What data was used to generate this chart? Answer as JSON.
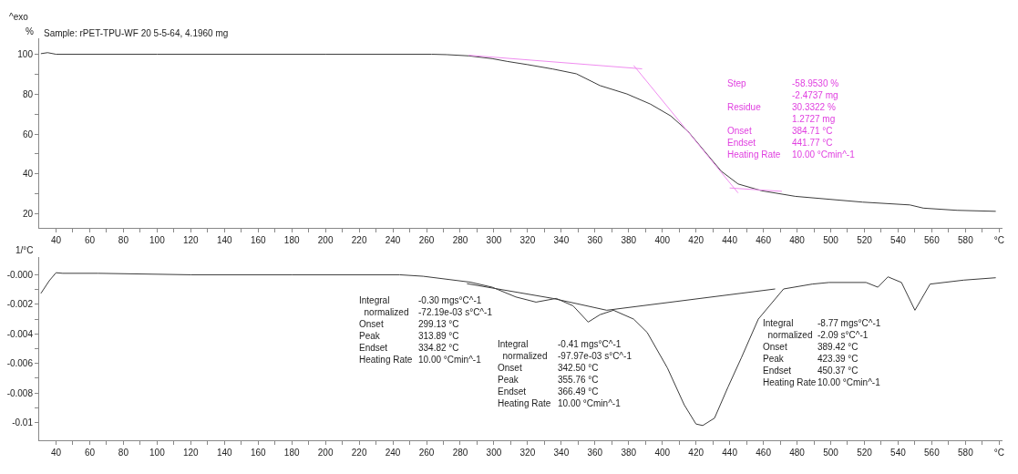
{
  "chart_data": [
    {
      "type": "line",
      "title": "Sample: rPET-TPU-WF 20 5-5-64, 4.1960 mg",
      "ylabel": "%",
      "annotations": [
        "^exo",
        "Step\n\nResidue\n\nOnset\nEndset\nHeating Rate",
        "-58.9530 %\n-2.4737 mg\n30.3322 %\n1.2727 mg\n384.71 °C\n441.77 °C\n10.00 °Cmin^-1"
      ],
      "xlim": [
        30,
        602
      ],
      "xticks": [
        40,
        {
          "value": 50,
          "label": null
        },
        60,
        {
          "value": 70,
          "label": null
        },
        80,
        {
          "value": 90,
          "label": null
        },
        100,
        {
          "value": 110,
          "label": null
        },
        120,
        {
          "value": 130,
          "label": null
        },
        140,
        {
          "value": 150,
          "label": null
        },
        160,
        {
          "value": 170,
          "label": null
        },
        180,
        {
          "value": 190,
          "label": null
        },
        200,
        {
          "value": 210,
          "label": null
        },
        220,
        {
          "value": 230,
          "label": null
        },
        240,
        {
          "value": 250,
          "label": null
        },
        260,
        {
          "value": 270,
          "label": null
        },
        280,
        {
          "value": 290,
          "label": null
        },
        300,
        {
          "value": 310,
          "label": null
        },
        320,
        {
          "value": 330,
          "label": null
        },
        340,
        {
          "value": 350,
          "label": null
        },
        360,
        {
          "value": 370,
          "label": null
        },
        380,
        {
          "value": 390,
          "label": null
        },
        400,
        {
          "value": 410,
          "label": null
        },
        420,
        {
          "value": 430,
          "label": null
        },
        440,
        {
          "value": 450,
          "label": null
        },
        460,
        {
          "value": 470,
          "label": null
        },
        480,
        {
          "value": 490,
          "label": null
        },
        500,
        {
          "value": 510,
          "label": null
        },
        520,
        {
          "value": 530,
          "label": null
        },
        540,
        {
          "value": 550,
          "label": null
        },
        560,
        {
          "value": 570,
          "label": null
        },
        580,
        {
          "value": 590,
          "label": null
        },
        {
          "value": 600,
          "label": "°C"
        }
      ],
      "ylim": [
        13,
        108
      ],
      "yticks": [
        20,
        {
          "value": 30,
          "label": null
        },
        40,
        {
          "value": 50,
          "label": null
        },
        60,
        {
          "value": 70,
          "label": null
        },
        80,
        {
          "value": 90,
          "label": null
        },
        100
      ],
      "grid": false,
      "series": [
        {
          "color": "#3c3c3c",
          "x": [
            31,
            35,
            40,
            100,
            200,
            263,
            272,
            285,
            299,
            308,
            320,
            335,
            349,
            363,
            379,
            393,
            405,
            415,
            425,
            435,
            445,
            459,
            479,
            519,
            547,
            555,
            575,
            598
          ],
          "values": [
            100.3,
            100.8,
            100,
            100,
            100,
            100,
            99.8,
            99.2,
            97.8,
            96.4,
            94.8,
            92.6,
            90.2,
            84.3,
            80.1,
            75,
            69.1,
            61.6,
            51.5,
            41.4,
            35,
            31.6,
            28.8,
            25.9,
            24.5,
            22.9,
            21.8,
            21.3
          ]
        },
        {
          "color": "#f08cf0",
          "x": [
            285,
            388
          ],
          "values": [
            99.5,
            92.7
          ]
        },
        {
          "color": "#f08cf0",
          "x": [
            383,
            445
          ],
          "values": [
            94.4,
            30.5
          ]
        },
        {
          "color": "#f08cf0",
          "x": [
            440,
            471
          ],
          "values": [
            33,
            31.3
          ]
        }
      ]
    },
    {
      "type": "line",
      "ylabel": "1/°C",
      "annotations": [
        "Integral\n  normalized\nOnset\nPeak\nEndset\nHeating Rate",
        "-0.30 mgs°C^-1\n-72.19e-03 s°C^-1\n299.13 °C\n313.89 °C\n334.82 °C\n10.00 °Cmin^-1",
        "Integral\n  normalized\nOnset\nPeak\nEndset\nHeating Rate",
        "-0.41 mgs°C^-1\n-97.97e-03 s°C^-1\n342.50 °C\n355.76 °C\n366.49 °C\n10.00 °Cmin^-1",
        "Integral\n  normalized\nOnset\nPeak\nEndset\nHeating Rate",
        "-8.77 mgs°C^-1\n-2.09 s°C^-1\n389.42 °C\n423.39 °C\n450.37 °C\n10.00 °Cmin^-1"
      ],
      "xlim": [
        30,
        602
      ],
      "xticks": [
        40,
        {
          "value": 50,
          "label": null
        },
        60,
        {
          "value": 70,
          "label": null
        },
        80,
        {
          "value": 90,
          "label": null
        },
        100,
        {
          "value": 110,
          "label": null
        },
        120,
        {
          "value": 130,
          "label": null
        },
        140,
        {
          "value": 150,
          "label": null
        },
        160,
        {
          "value": 170,
          "label": null
        },
        180,
        {
          "value": 190,
          "label": null
        },
        200,
        {
          "value": 210,
          "label": null
        },
        220,
        {
          "value": 230,
          "label": null
        },
        240,
        {
          "value": 250,
          "label": null
        },
        260,
        {
          "value": 270,
          "label": null
        },
        280,
        {
          "value": 290,
          "label": null
        },
        300,
        {
          "value": 310,
          "label": null
        },
        320,
        {
          "value": 330,
          "label": null
        },
        340,
        {
          "value": 350,
          "label": null
        },
        360,
        {
          "value": 370,
          "label": null
        },
        380,
        {
          "value": 390,
          "label": null
        },
        400,
        {
          "value": 410,
          "label": null
        },
        420,
        {
          "value": 430,
          "label": null
        },
        440,
        {
          "value": 450,
          "label": null
        },
        460,
        {
          "value": 470,
          "label": null
        },
        480,
        {
          "value": 490,
          "label": null
        },
        500,
        {
          "value": 510,
          "label": null
        },
        520,
        {
          "value": 530,
          "label": null
        },
        540,
        {
          "value": 550,
          "label": null
        },
        560,
        {
          "value": 570,
          "label": null
        },
        580,
        {
          "value": 590,
          "label": null
        },
        {
          "value": 600,
          "label": "°C"
        }
      ],
      "ylim": [
        -0.0112,
        0.0012
      ],
      "yticks": [
        {
          "value": 0,
          "label": "-0.000"
        },
        {
          "value": -0.001,
          "label": null
        },
        -0.002,
        {
          "value": -0.003,
          "label": null
        },
        -0.004,
        {
          "value": -0.005,
          "label": null
        },
        -0.006,
        {
          "value": -0.007,
          "label": null
        },
        -0.008,
        {
          "value": -0.009,
          "label": null
        },
        -0.01
      ],
      "grid": false,
      "series": [
        {
          "color": "#3c3c3c",
          "x": [
            31,
            36,
            40,
            44,
            65,
            120,
            180,
            244,
            258,
            286,
            299,
            313,
            325,
            337,
            347,
            356,
            363,
            371,
            383,
            391,
            403,
            413,
            420,
            424,
            431,
            439,
            447,
            457,
            472,
            489,
            499,
            521,
            528,
            534,
            542,
            550,
            559,
            579,
            598
          ],
          "values": [
            -0.00126,
            -0.0004,
            0.00014,
            0.0001,
            0.0001,
            0,
            0,
            0,
            -0.0001,
            -0.0005,
            -0.00084,
            -0.0015,
            -0.00185,
            -0.0016,
            -0.0021,
            -0.0032,
            -0.0027,
            -0.0024,
            -0.003,
            -0.0039,
            -0.0063,
            -0.0088,
            -0.0101,
            -0.0102,
            -0.0097,
            -0.0076,
            -0.0056,
            -0.003,
            -0.00096,
            -0.00063,
            -0.00052,
            -0.00052,
            -0.00084,
            -0.00014,
            -0.00052,
            -0.0024,
            -0.00063,
            -0.00036,
            -0.0002
          ]
        },
        {
          "color": "#3c3c3c",
          "x": [
            284,
            335,
            367,
            467
          ],
          "values": [
            -0.0006,
            -0.0016,
            -0.0024,
            -0.00096
          ]
        }
      ]
    }
  ]
}
